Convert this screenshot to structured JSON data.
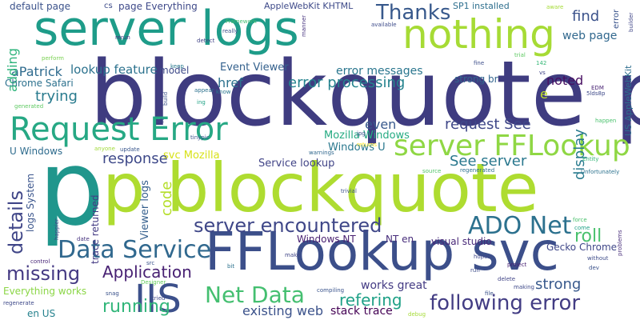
{
  "words": [
    {
      "text": "blockquote p",
      "color": "#3f3c80"
    },
    {
      "text": "p",
      "color": "#20968c"
    },
    {
      "text": "p blockquote",
      "color": "#aedc30"
    },
    {
      "text": "FFLookup svc",
      "color": "#3c4f8a"
    },
    {
      "text": "server logs",
      "color": "#1e9c89"
    },
    {
      "text": "nothing",
      "color": "#a6db35"
    },
    {
      "text": "Request Error",
      "color": "#26a884"
    },
    {
      "text": "server FFLookup",
      "color": "#8fd744"
    },
    {
      "text": "IIS",
      "color": "#3c508b"
    },
    {
      "text": "server encountered",
      "color": "#3f4788"
    },
    {
      "text": "ADO Net",
      "color": "#2c718e"
    },
    {
      "text": "Data Service",
      "color": "#30688e"
    },
    {
      "text": "following error",
      "color": "#433d84"
    },
    {
      "text": "Net Data",
      "color": "#44bf70"
    },
    {
      "text": "Thanks",
      "color": "#38598c"
    },
    {
      "text": "error processing",
      "color": "#25838e"
    },
    {
      "text": "Application",
      "color": "#482173"
    },
    {
      "text": "missing",
      "color": "#443983"
    },
    {
      "text": "details",
      "color": "#404688"
    },
    {
      "text": "running",
      "color": "#32b67a"
    },
    {
      "text": "roll",
      "color": "#4ac16d"
    },
    {
      "text": "refering",
      "color": "#1fa187"
    },
    {
      "text": "strong",
      "color": "#38598c"
    },
    {
      "text": "existing web",
      "color": "#3b528b"
    },
    {
      "text": "stack trace",
      "color": "#440154"
    },
    {
      "text": "works great",
      "color": "#443b84"
    },
    {
      "text": "response",
      "color": "#3e4989"
    },
    {
      "text": "code",
      "color": "#b5de2b"
    },
    {
      "text": "display",
      "color": "#297b8e"
    },
    {
      "text": "request See",
      "color": "#3f4788"
    },
    {
      "text": "See server",
      "color": "#2a788e"
    },
    {
      "text": "error messages",
      "color": "#2a768e"
    },
    {
      "text": "lookup feature",
      "color": "#2c728e"
    },
    {
      "text": "Event Viewer",
      "color": "#34618d"
    },
    {
      "text": "href",
      "color": "#2c718e"
    },
    {
      "text": "trying",
      "color": "#297b8e"
    },
    {
      "text": "aPatrick",
      "color": "#2f6b8e"
    },
    {
      "text": "adding",
      "color": "#2fb47c"
    },
    {
      "text": "noted",
      "color": "#470e61"
    },
    {
      "text": "web page",
      "color": "#31688e"
    },
    {
      "text": "find",
      "color": "#3b528b"
    },
    {
      "text": "even",
      "color": "#38598c"
    },
    {
      "text": "Mozilla Windows",
      "color": "#25ab82"
    },
    {
      "text": "Windows U",
      "color": "#2a788e"
    },
    {
      "text": "Service lookup",
      "color": "#414487"
    },
    {
      "text": "svc Mozilla",
      "color": "#d8e219"
    },
    {
      "text": "U Windows",
      "color": "#2f6c8e"
    },
    {
      "text": "Chrome Safari",
      "color": "#2c718e"
    },
    {
      "text": "logs System",
      "color": "#3a548c"
    },
    {
      "text": "Viewer logs",
      "color": "#355f8d"
    },
    {
      "text": "trace returned",
      "color": "#443b84"
    },
    {
      "text": "Windows NT",
      "color": "#481f70"
    },
    {
      "text": "NT en",
      "color": "#472d7b"
    },
    {
      "text": "visual studio",
      "color": "#482878"
    },
    {
      "text": "Gecko Chrome",
      "color": "#3f4788"
    },
    {
      "text": "Everything works",
      "color": "#8bd646"
    },
    {
      "text": "en US",
      "color": "#26828e"
    },
    {
      "text": "default page",
      "color": "#3b528b"
    },
    {
      "text": "cs",
      "color": "#3e4c8a"
    },
    {
      "text": "page Everything",
      "color": "#3e4989"
    },
    {
      "text": "AppleWebKit KHTML",
      "color": "#3e4a89"
    },
    {
      "text": "SP1 installed",
      "color": "#2e6f8e"
    },
    {
      "text": "strong br",
      "color": "#32658e"
    },
    {
      "text": "model",
      "color": "#3e4a89"
    },
    {
      "text": "e",
      "color": "#bddf26"
    },
    {
      "text": "US AppleWebKit",
      "color": "#2e6e8e"
    },
    {
      "text": "error",
      "color": "#3a548c"
    },
    {
      "text": "Framework",
      "color": "#42be71"
    },
    {
      "text": "aware",
      "color": "#a5db36"
    },
    {
      "text": "builder",
      "color": "#404688"
    },
    {
      "text": "really",
      "color": "#3b528b"
    },
    {
      "text": "rerun",
      "color": "#46307e"
    },
    {
      "text": "detect",
      "color": "#414487"
    },
    {
      "text": "manner",
      "color": "#46327e"
    },
    {
      "text": "available",
      "color": "#3e4c8a"
    },
    {
      "text": "trial",
      "color": "#5ec962"
    },
    {
      "text": "perform",
      "color": "#7ad151"
    },
    {
      "text": "keep",
      "color": "#297a8e"
    },
    {
      "text": "appear",
      "color": "#2c718e"
    },
    {
      "text": "know",
      "color": "#2a788e"
    },
    {
      "text": "142",
      "color": "#37b878"
    },
    {
      "text": "fine",
      "color": "#3d4e8a"
    },
    {
      "text": "vs",
      "color": "#414487"
    },
    {
      "text": "EDM",
      "color": "#482374"
    },
    {
      "text": "5lds8p",
      "color": "#3e4989"
    },
    {
      "text": "generated",
      "color": "#5ec962"
    },
    {
      "text": "build",
      "color": "#3b528b"
    },
    {
      "text": "ing",
      "color": "#20a386"
    },
    {
      "text": "happen",
      "color": "#4ac16d"
    },
    {
      "text": "alt",
      "color": "#3e4a89"
    },
    {
      "text": "tinypic",
      "color": "#3b528b"
    },
    {
      "text": "anyone",
      "color": "#a0da39"
    },
    {
      "text": "update",
      "color": "#39568c"
    },
    {
      "text": "jpg",
      "color": "#3b528b"
    },
    {
      "text": "returns",
      "color": "#fde725"
    },
    {
      "text": "warnings",
      "color": "#31688e"
    },
    {
      "text": "Entity",
      "color": "#35b779"
    },
    {
      "text": "source",
      "color": "#52c569"
    },
    {
      "text": "regenerated",
      "color": "#2d708e"
    },
    {
      "text": "Unfortunately",
      "color": "#2c728e"
    },
    {
      "text": "trivial",
      "color": "#3b528b"
    },
    {
      "text": "force",
      "color": "#4ac16d"
    },
    {
      "text": "come",
      "color": "#1fa187"
    },
    {
      "text": "happier",
      "color": "#404387"
    },
    {
      "text": "date",
      "color": "#46327e"
    },
    {
      "text": "control",
      "color": "#482677"
    },
    {
      "text": "Designer",
      "color": "#65cb5e"
    },
    {
      "text": "src",
      "color": "#3b528b"
    },
    {
      "text": "bit",
      "color": "#2c728e"
    },
    {
      "text": "make",
      "color": "#404688"
    },
    {
      "text": "run",
      "color": "#3e4c8a"
    },
    {
      "text": "delete",
      "color": "#414487"
    },
    {
      "text": "making",
      "color": "#3e4989"
    },
    {
      "text": "hopes",
      "color": "#3f4788"
    },
    {
      "text": "project",
      "color": "#482173"
    },
    {
      "text": "dev",
      "color": "#3b528b"
    },
    {
      "text": "without",
      "color": "#3e4c8a"
    },
    {
      "text": "problems",
      "color": "#472c7a"
    },
    {
      "text": "regenerate",
      "color": "#3e4989"
    },
    {
      "text": "snag",
      "color": "#3b528b"
    },
    {
      "text": "tried",
      "color": "#3e4989"
    },
    {
      "text": "compiling",
      "color": "#3a548c"
    },
    {
      "text": "file",
      "color": "#3b528b"
    },
    {
      "text": "debug",
      "color": "#a5db36"
    }
  ]
}
